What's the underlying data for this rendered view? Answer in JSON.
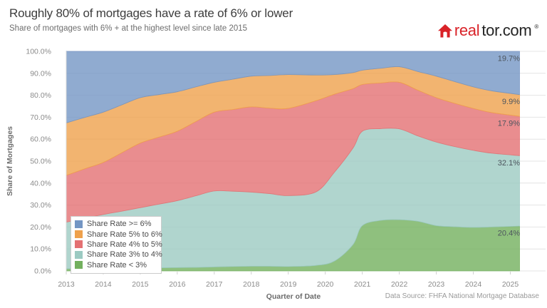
{
  "page": {
    "title": "Roughly 80% of mortgages have a rate of 6% or lower",
    "subtitle": "Share of mortgages with 6% + at the highest level since late 2015"
  },
  "logo": {
    "brand_red": "real",
    "brand_dark": "tor.com",
    "registered_mark": "®",
    "house_color": "#d92228"
  },
  "footer": {
    "data_source": "Data Source: FHFA National Mortgage Database"
  },
  "chart_data": {
    "type": "area",
    "stacked": true,
    "title": "Roughly 80% of mortgages have a rate of 6% or lower",
    "xlabel": "Quarter of Date",
    "ylabel": "Share of Mortgages",
    "grid": "horizontal",
    "legend_position": "bottom-left",
    "x_ticks": [
      2013,
      2014,
      2015,
      2016,
      2017,
      2018,
      2019,
      2020,
      2021,
      2022,
      2023,
      2024,
      2025
    ],
    "y_axis": {
      "min": 0,
      "max": 100,
      "step": 10,
      "tick_suffix": "%"
    },
    "x": [
      2013,
      2013.5,
      2014,
      2014.5,
      2015,
      2015.5,
      2016,
      2016.5,
      2017,
      2017.5,
      2018,
      2018.5,
      2019,
      2019.75,
      2020.25,
      2020.75,
      2021,
      2021.5,
      2022,
      2022.5,
      2023,
      2023.5,
      2024,
      2024.5,
      2025.25
    ],
    "series": [
      {
        "key": "gte6",
        "name": "Share Rate >= 6%",
        "color": "#7496c4",
        "end_label": "19.7%",
        "values": [
          32.6,
          30.1,
          27.7,
          24.4,
          21.1,
          19.7,
          18.4,
          16.2,
          14.1,
          12.7,
          11.3,
          11.0,
          10.6,
          10.8,
          10.6,
          9.7,
          8.6,
          7.7,
          7.0,
          9.2,
          11.3,
          13.8,
          16.2,
          18.0,
          19.7
        ]
      },
      {
        "key": "5to6",
        "name": "Share Rate 5% to 6%",
        "color": "#efa14c",
        "end_label": "9.9%",
        "values": [
          23.9,
          23.4,
          22.9,
          21.8,
          20.7,
          19.4,
          18.0,
          15.8,
          13.6,
          13.8,
          14.0,
          14.9,
          15.4,
          11.7,
          8.9,
          7.3,
          6.5,
          6.7,
          7.1,
          8.5,
          9.8,
          9.9,
          9.8,
          9.9,
          9.9
        ]
      },
      {
        "key": "4to5",
        "name": "Share Rate 4% to 5%",
        "color": "#e47173",
        "end_label": "17.9%",
        "values": [
          21.3,
          22.5,
          23.7,
          26.6,
          29.4,
          30.5,
          31.6,
          33.8,
          35.9,
          37.2,
          38.8,
          38.9,
          39.7,
          41.5,
          35.5,
          27.0,
          21.3,
          20.8,
          21.2,
          20.8,
          20.2,
          19.7,
          19.1,
          18.5,
          17.9
        ]
      },
      {
        "key": "3to4",
        "name": "Share Rate 3% to 4%",
        "color": "#9ccac2",
        "end_label": "32.1%",
        "values": [
          21.2,
          23.0,
          24.7,
          26.1,
          27.5,
          29.0,
          30.5,
          32.6,
          34.6,
          34.3,
          33.8,
          33.1,
          32.3,
          33.5,
          40.5,
          44.0,
          43.0,
          41.8,
          41.4,
          38.9,
          38.1,
          36.5,
          35.1,
          33.6,
          32.1
        ]
      },
      {
        "key": "lt3",
        "name": "Share Rate < 3%",
        "color": "#73b05e",
        "end_label": "20.4%",
        "values": [
          1.0,
          1.0,
          1.0,
          1.1,
          1.3,
          1.4,
          1.5,
          1.6,
          1.8,
          2.0,
          2.1,
          2.1,
          2.0,
          2.5,
          4.5,
          12.0,
          20.6,
          23.0,
          23.3,
          22.6,
          20.6,
          20.1,
          19.8,
          20.0,
          20.4
        ]
      }
    ]
  }
}
